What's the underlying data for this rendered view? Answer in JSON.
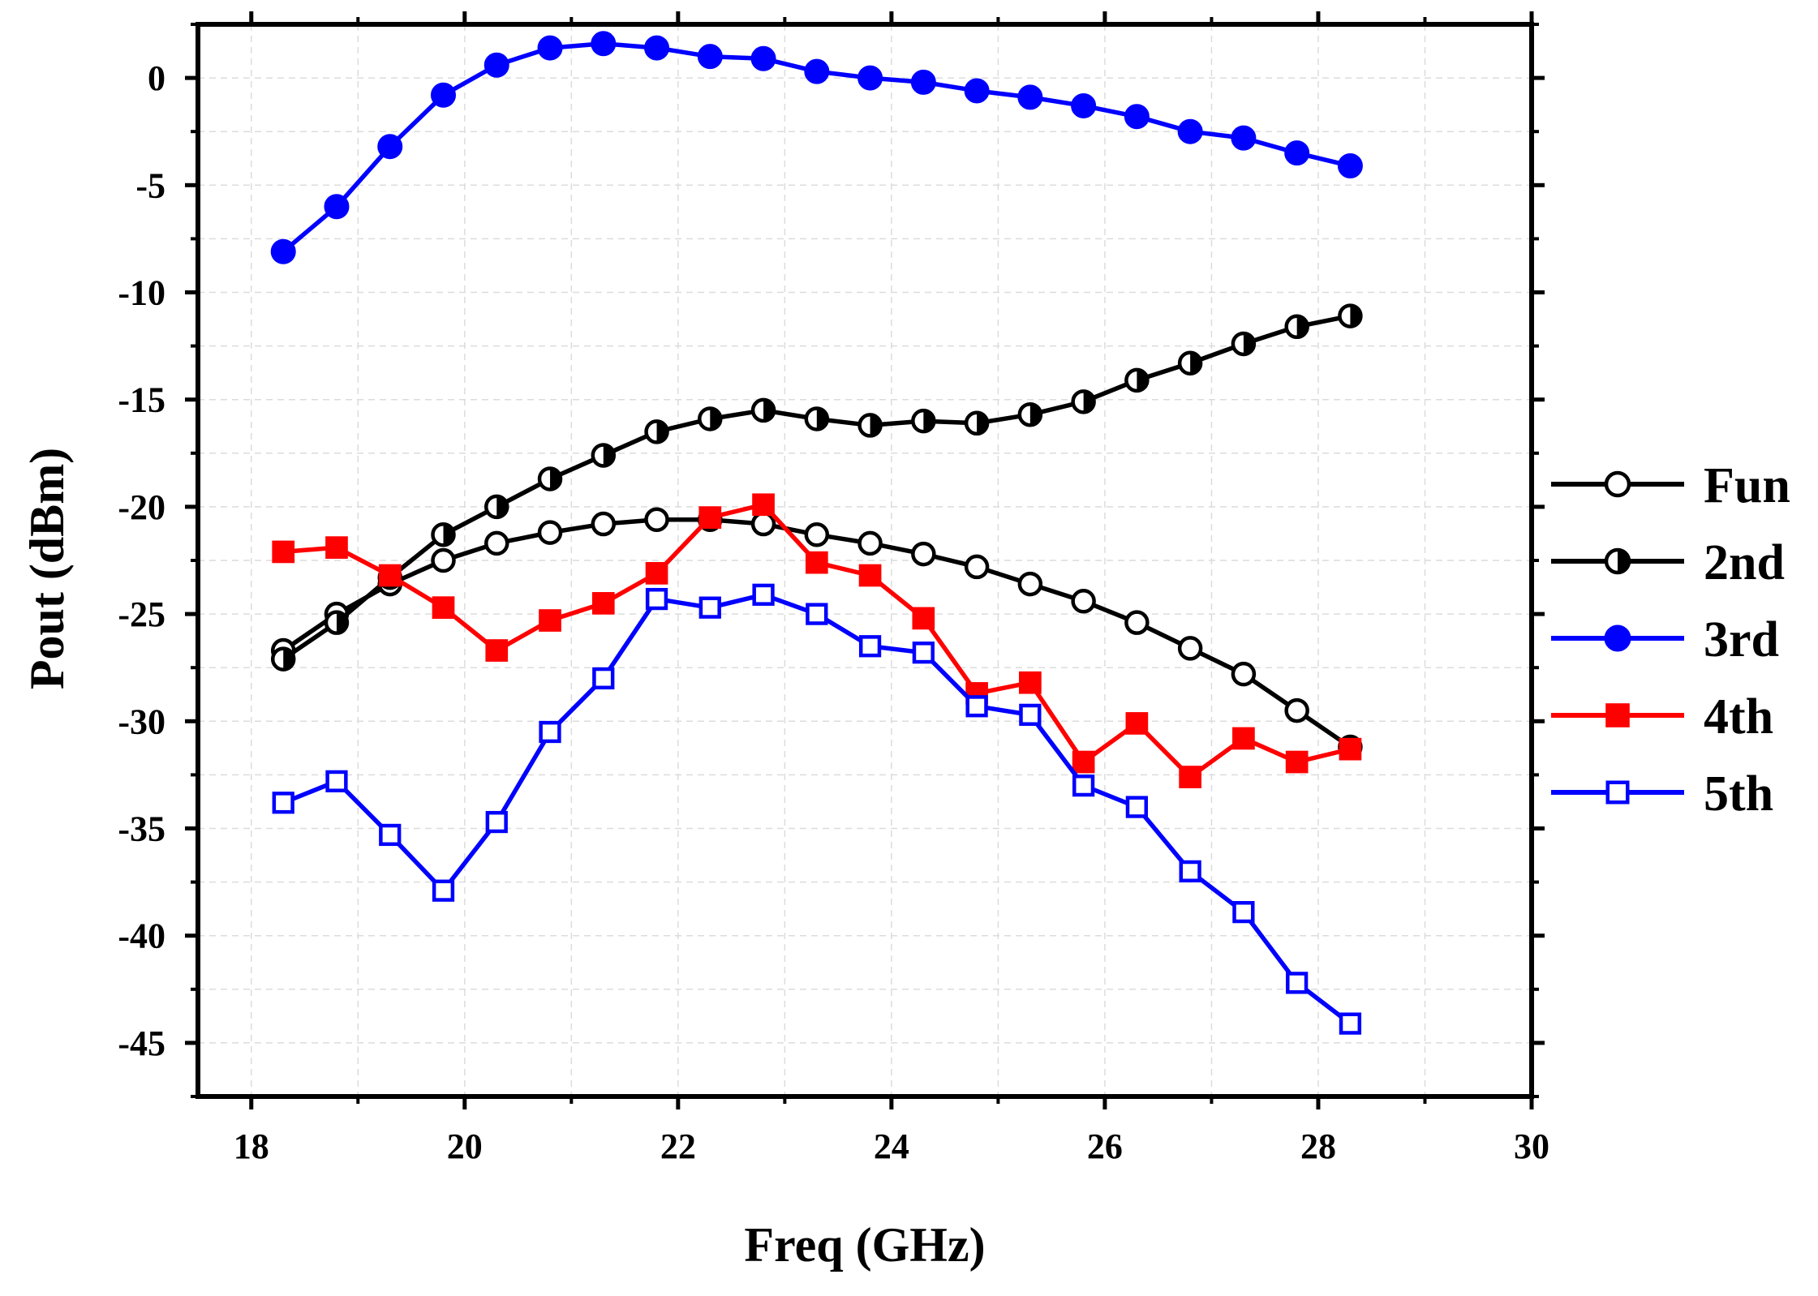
{
  "chart_data": {
    "type": "line",
    "title": "",
    "xlabel": "Freq (GHz)",
    "ylabel": "Pout (dBm)",
    "xlim": [
      17.5,
      30
    ],
    "ylim": [
      -47.5,
      2.5
    ],
    "xticks": [
      18,
      20,
      22,
      24,
      26,
      28,
      30
    ],
    "yticks": [
      0,
      -5,
      -10,
      -15,
      -20,
      -25,
      -30,
      -35,
      -40,
      -45
    ],
    "xtick_labels": [
      "18",
      "20",
      "22",
      "24",
      "26",
      "28",
      "30"
    ],
    "ytick_labels": [
      "0",
      "-5",
      "-10",
      "-15",
      "-20",
      "-25",
      "-30",
      "-35",
      "-40",
      "-45"
    ],
    "grid": true,
    "legend_position": "right",
    "x": [
      18.3,
      18.8,
      19.3,
      19.8,
      20.3,
      20.8,
      21.3,
      21.8,
      22.3,
      22.8,
      23.3,
      23.8,
      24.3,
      24.8,
      25.3,
      25.8,
      26.3,
      26.8,
      27.3,
      27.8,
      28.3
    ],
    "series": [
      {
        "name": "Fun",
        "color": "#000000",
        "marker": "circle-open",
        "values": [
          -26.7,
          -25.0,
          -23.6,
          -22.5,
          -21.7,
          -21.2,
          -20.8,
          -20.6,
          -20.6,
          -20.8,
          -21.3,
          -21.7,
          -22.2,
          -22.8,
          -23.6,
          -24.4,
          -25.4,
          -26.6,
          -27.8,
          -29.5,
          -31.2
        ]
      },
      {
        "name": "2nd",
        "color": "#000000",
        "marker": "circle-half",
        "values": [
          -27.1,
          -25.4,
          -23.3,
          -21.3,
          -20.0,
          -18.7,
          -17.6,
          -16.5,
          -15.9,
          -15.5,
          -15.9,
          -16.2,
          -16.0,
          -16.1,
          -15.7,
          -15.1,
          -14.1,
          -13.3,
          -12.4,
          -11.6,
          -11.1
        ]
      },
      {
        "name": "3rd",
        "color": "#0000ff",
        "marker": "circle-filled",
        "values": [
          -8.1,
          -6.0,
          -3.2,
          -0.8,
          0.6,
          1.4,
          1.6,
          1.4,
          1.0,
          0.9,
          0.3,
          0.0,
          -0.2,
          -0.6,
          -0.9,
          -1.3,
          -1.8,
          -2.5,
          -2.8,
          -3.5,
          -4.1
        ]
      },
      {
        "name": "4th",
        "color": "#ff0000",
        "marker": "square-filled",
        "values": [
          -22.1,
          -21.9,
          -23.2,
          -24.7,
          -26.7,
          -25.3,
          -24.5,
          -23.1,
          -20.5,
          -19.9,
          -22.6,
          -23.2,
          -25.2,
          -28.7,
          -28.2,
          -31.9,
          -30.1,
          -32.6,
          -30.8,
          -31.9,
          -31.3
        ]
      },
      {
        "name": "5th",
        "color": "#0000ff",
        "marker": "square-open",
        "values": [
          -33.8,
          -32.8,
          -35.3,
          -37.9,
          -34.7,
          -30.5,
          -28.0,
          -24.3,
          -24.7,
          -24.1,
          -25.0,
          -26.5,
          -26.8,
          -29.3,
          -29.7,
          -33.0,
          -34.0,
          -37.0,
          -38.9,
          -42.2,
          -44.1
        ]
      }
    ]
  }
}
